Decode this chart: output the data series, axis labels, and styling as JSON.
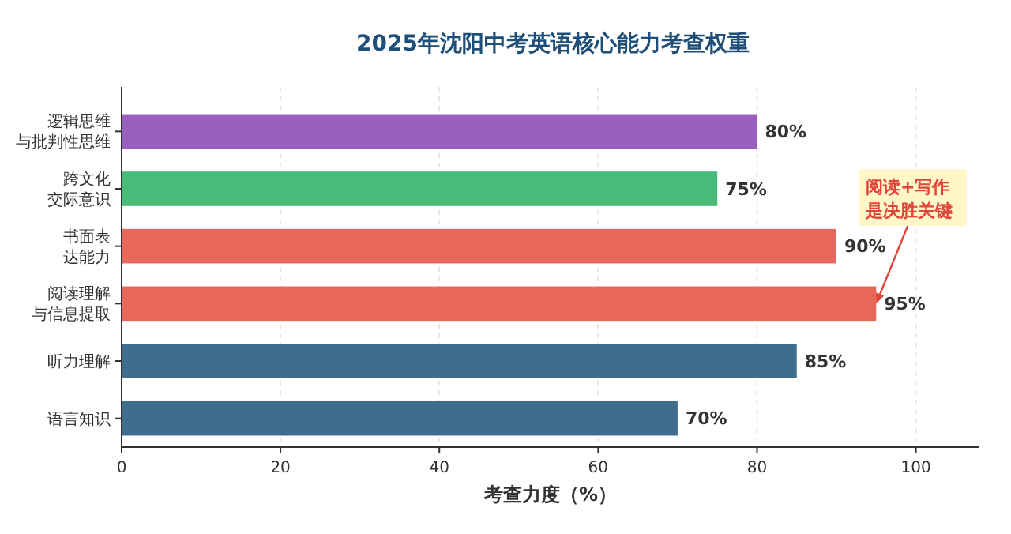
{
  "chart_data": {
    "type": "bar",
    "orientation": "horizontal",
    "title": "2025年沈阳中考英语核心能力考查权重",
    "xlabel": "考查力度（%）",
    "categories": [
      "逻辑思维与批判性思维",
      "跨文化交际意识",
      "书面表达能力",
      "阅读理解与信息提取",
      "听力理解",
      "语言知识"
    ],
    "values": [
      80,
      75,
      90,
      95,
      85,
      70
    ],
    "colors": [
      "#9b5fbf",
      "#48bb78",
      "#e8695b",
      "#e8695b",
      "#3e6d8e",
      "#3e6d8e"
    ],
    "value_labels": [
      "80%",
      "75%",
      "90%",
      "95%",
      "85%",
      "70%"
    ],
    "xlim": [
      0,
      108
    ],
    "xticks": [
      0,
      20,
      40,
      60,
      80,
      100
    ],
    "grid": "x",
    "annotations": [
      {
        "text": "阅读+写作是决胜关键",
        "x": 95,
        "y": "阅读理解与信息提取"
      }
    ]
  }
}
